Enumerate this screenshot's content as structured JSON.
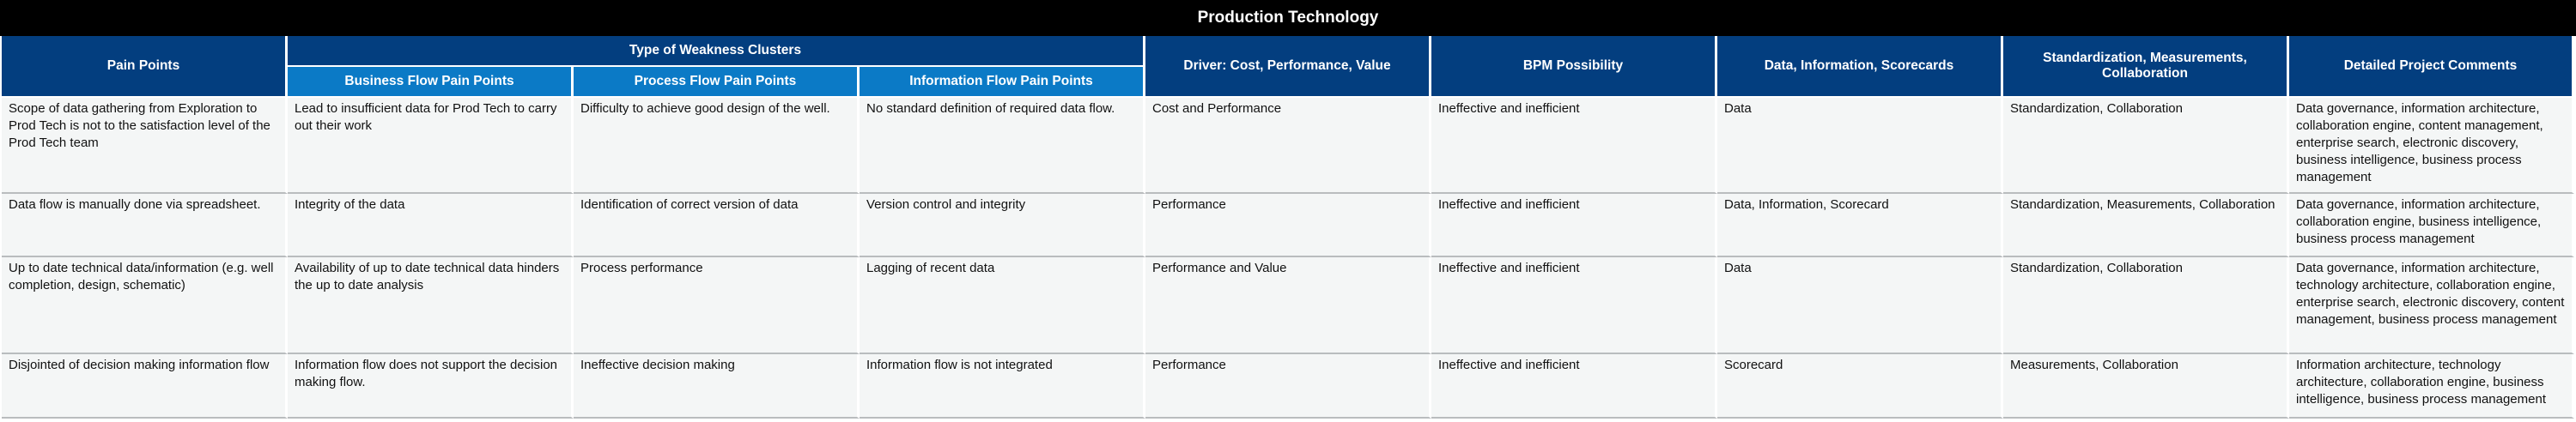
{
  "title": "Production Technology",
  "headers": {
    "pain_points": "Pain Points",
    "cluster_group": "Type of Weakness Clusters",
    "business_flow": "Business Flow Pain Points",
    "process_flow": "Process Flow Pain Points",
    "information_flow": "Information Flow Pain Points",
    "driver": "Driver: Cost, Performance, Value",
    "bpm": "BPM Possibility",
    "data_info": "Data, Information, Scorecards",
    "standardization": "Standardization, Measurements, Collaboration",
    "comments": "Detailed Project Comments"
  },
  "rows": [
    {
      "pain_point": "Scope of data gathering from Exploration to Prod Tech is not to the satisfaction level of the Prod Tech team",
      "business_flow": "Lead to insufficient data for Prod Tech to carry out their work",
      "process_flow": "Difficulty to achieve good design of the well.",
      "information_flow": "No standard definition of required data flow.",
      "driver": "Cost and Performance",
      "bpm": "Ineffective and inefficient",
      "data_info": "Data",
      "standardization": "Standardization, Collaboration",
      "comments": "Data governance, information architecture, collaboration engine, content management, enterprise search,  electronic discovery, business intelligence, business process management"
    },
    {
      "pain_point": "Data flow is manually done via spreadsheet.",
      "business_flow": "Integrity of the data",
      "process_flow": "Identification of correct version of data",
      "information_flow": "Version control and integrity",
      "driver": "Performance",
      "bpm": "Ineffective and inefficient",
      "data_info": "Data, Information, Scorecard",
      "standardization": "Standardization, Measurements, Collaboration",
      "comments": "Data governance, information architecture, collaboration engine, business intelligence, business process management"
    },
    {
      "pain_point": "Up to date technical data/information (e.g. well completion, design, schematic)",
      "business_flow": "Availability of up to date technical data hinders the up to date analysis",
      "process_flow": "Process performance",
      "information_flow": "Lagging of recent data",
      "driver": "Performance and Value",
      "bpm": "Ineffective and inefficient",
      "data_info": "Data",
      "standardization": "Standardization, Collaboration",
      "comments": "Data governance, information architecture, technology architecture, collaboration engine, enterprise search,  electronic discovery, content management, business process management"
    },
    {
      "pain_point": "Disjointed of decision making information flow",
      "business_flow": "Information flow does not support the decision making flow.",
      "process_flow": "Ineffective decision making",
      "information_flow": "Information flow is not integrated",
      "driver": "Performance",
      "bpm": "Ineffective and inefficient",
      "data_info": "Scorecard",
      "standardization": "Measurements, Collaboration",
      "comments": "Information architecture, technology architecture, collaboration engine, business intelligence, business process management"
    }
  ]
}
